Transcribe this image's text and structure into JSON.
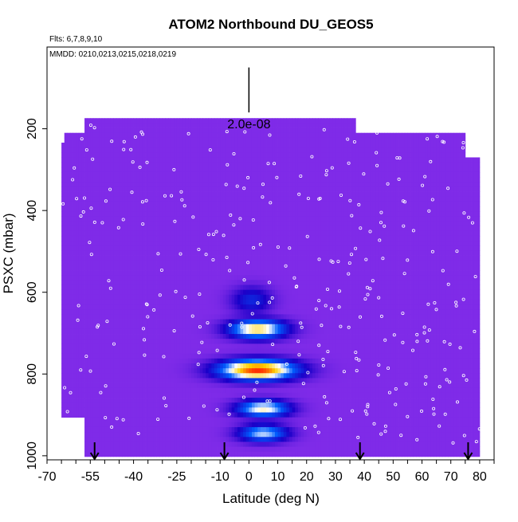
{
  "chart_data": {
    "type": "heatmap",
    "title": "ATOM2 Northbound DU_GEOS5",
    "flights_label": "Flts: 6,7,8,9,10",
    "dates_label": "MMDD: 0210,0213,0215,0218,0219",
    "xlabel": "Latitude (deg N)",
    "ylabel": "PSXC (mbar)",
    "xlim": [
      -70,
      85
    ],
    "ylim": [
      1000,
      0
    ],
    "x_ticks": [
      -70,
      -55,
      -40,
      -25,
      -10,
      0,
      10,
      20,
      30,
      40,
      50,
      60,
      70,
      80
    ],
    "x_tick_labels": [
      "-70",
      "-55",
      "-40",
      "-25",
      "-10",
      "0",
      "10",
      "20",
      "30",
      "40",
      "50",
      "60",
      "70",
      "80"
    ],
    "y_ticks": [
      200,
      400,
      600,
      800,
      1000
    ],
    "y_tick_labels": [
      "200",
      "400",
      "600",
      "800",
      "1000"
    ],
    "scale_bar": {
      "label": "2.0e-08",
      "latitude": 0,
      "pressure_top": 50,
      "pressure_bottom": 160
    },
    "arrows_latitudes": [
      -53.5,
      -8.5,
      38.5,
      76
    ],
    "colors": {
      "background": "#7f2be8",
      "low": "#1a00c8",
      "mid": "#0060ff",
      "high": "#ffffff",
      "hot": "#ff2a00",
      "warm": "#ffd000"
    },
    "coverage": [
      {
        "lat_start": -65,
        "lat_end": -64,
        "p_top": 240,
        "p_bottom": 910
      },
      {
        "lat_start": -64,
        "lat_end": -57,
        "p_top": 205,
        "p_bottom": 910
      },
      {
        "lat_start": -57,
        "lat_end": -45,
        "p_top": 175,
        "p_bottom": 1000
      },
      {
        "lat_start": -45,
        "lat_end": 37,
        "p_top": 175,
        "p_bottom": 1000
      },
      {
        "lat_start": 37,
        "lat_end": 75,
        "p_top": 210,
        "p_bottom": 1000
      },
      {
        "lat_start": 75,
        "lat_end": 80,
        "p_top": 265,
        "p_bottom": 1000
      }
    ],
    "features": [
      {
        "lat_center": 3,
        "lat_halfwidth": 19,
        "p_center": 790,
        "p_halfwidth": 30,
        "peak": 1.0
      },
      {
        "lat_center": 3,
        "lat_halfwidth": 14,
        "p_center": 690,
        "p_halfwidth": 28,
        "peak": 0.75
      },
      {
        "lat_center": 5,
        "lat_halfwidth": 13,
        "p_center": 885,
        "p_halfwidth": 25,
        "peak": 0.65
      },
      {
        "lat_center": 5,
        "lat_halfwidth": 12,
        "p_center": 945,
        "p_halfwidth": 25,
        "peak": 0.55
      },
      {
        "lat_center": 1,
        "lat_halfwidth": 10,
        "p_center": 620,
        "p_halfwidth": 40,
        "peak": 0.25
      }
    ]
  }
}
